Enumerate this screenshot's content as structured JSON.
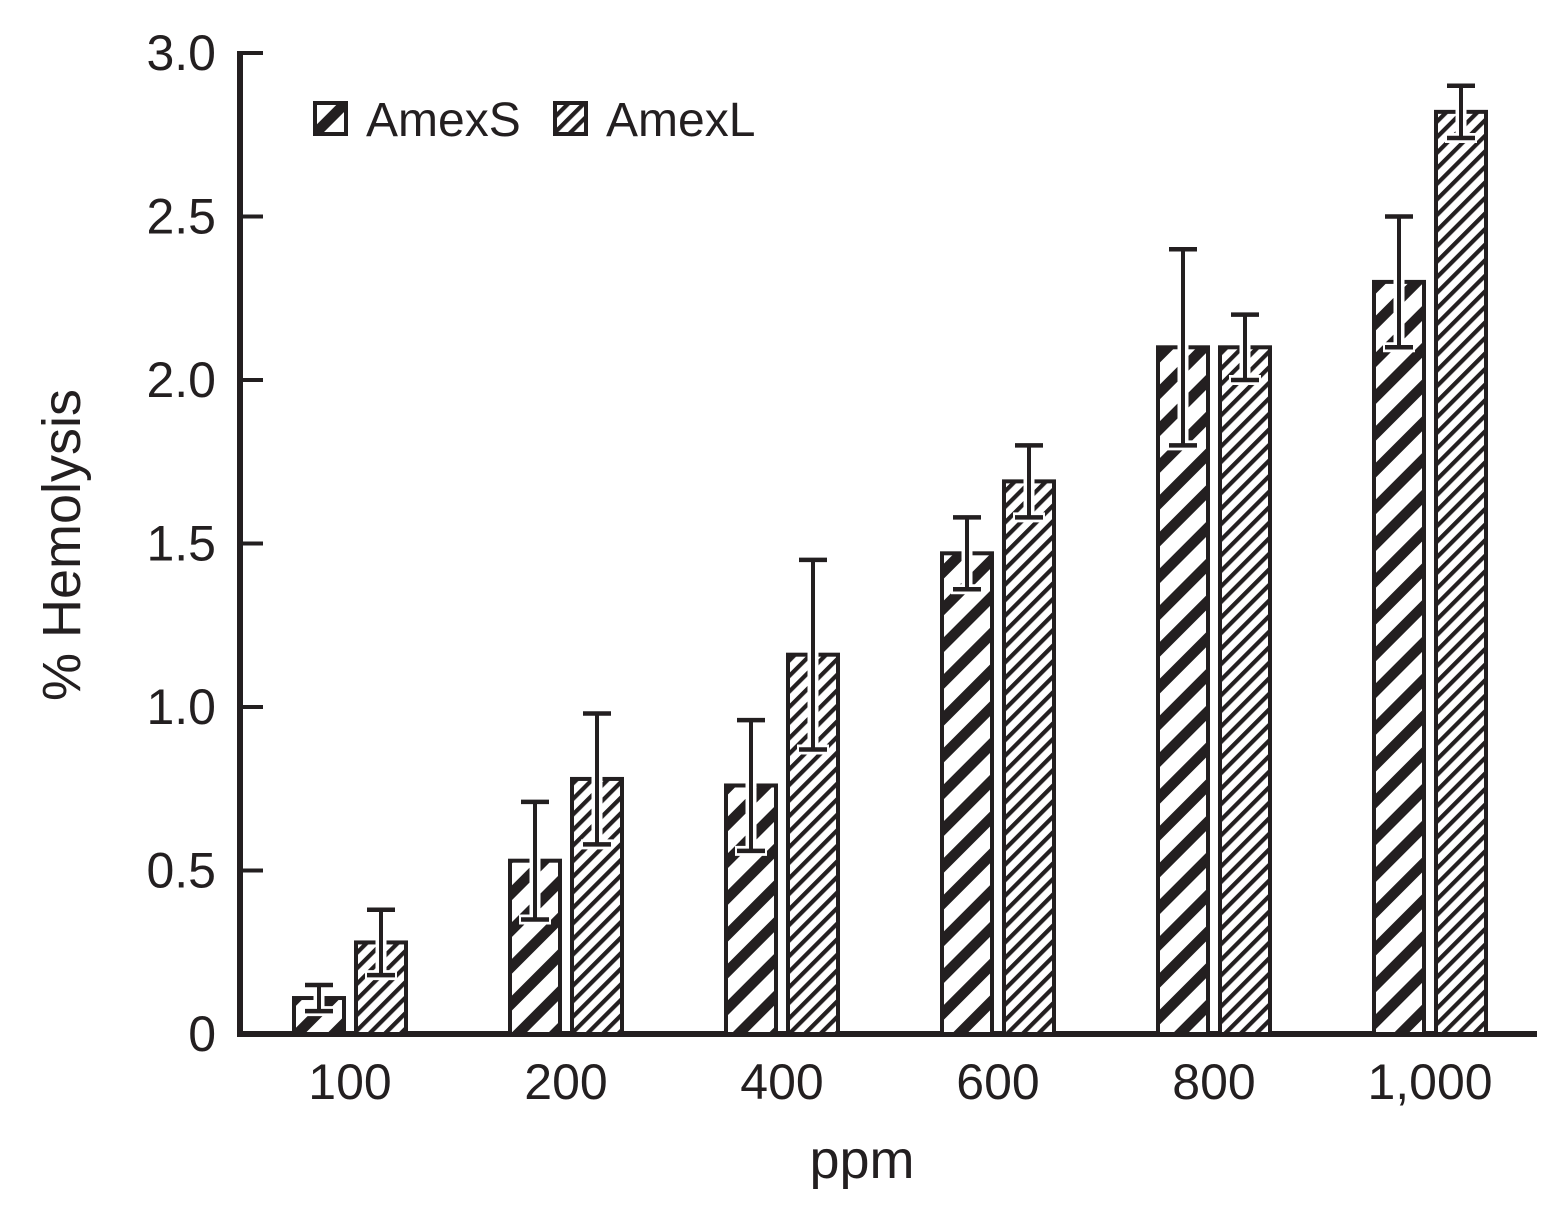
{
  "figure": {
    "background": "#ffffff",
    "ink": "#231f20"
  },
  "chart_data": {
    "type": "bar",
    "title": "",
    "xlabel": "ppm",
    "ylabel": "% Hemolysis",
    "categories": [
      "100",
      "200",
      "400",
      "600",
      "800",
      "1,000"
    ],
    "series": [
      {
        "name": "AmexS",
        "hatch": "wide-diagonal-hatch",
        "values": [
          0.11,
          0.53,
          0.76,
          1.47,
          2.1,
          2.3
        ],
        "errors": [
          0.04,
          0.18,
          0.2,
          0.11,
          0.3,
          0.2
        ]
      },
      {
        "name": "AmexL",
        "hatch": "fine-diagonal-hatch",
        "values": [
          0.28,
          0.78,
          1.16,
          1.69,
          2.1,
          2.82
        ],
        "errors": [
          0.1,
          0.2,
          0.29,
          0.11,
          0.1,
          0.08
        ]
      }
    ],
    "ylim": [
      0,
      3.0
    ],
    "yticks": [
      0,
      0.5,
      1.0,
      1.5,
      2.0,
      2.5,
      3.0
    ],
    "ytick_labels": [
      "0",
      "0.5",
      "1.0",
      "1.5",
      "2.0",
      "2.5",
      "3.0"
    ],
    "grid": false,
    "legend_position": "top-left",
    "error_bars": true
  }
}
